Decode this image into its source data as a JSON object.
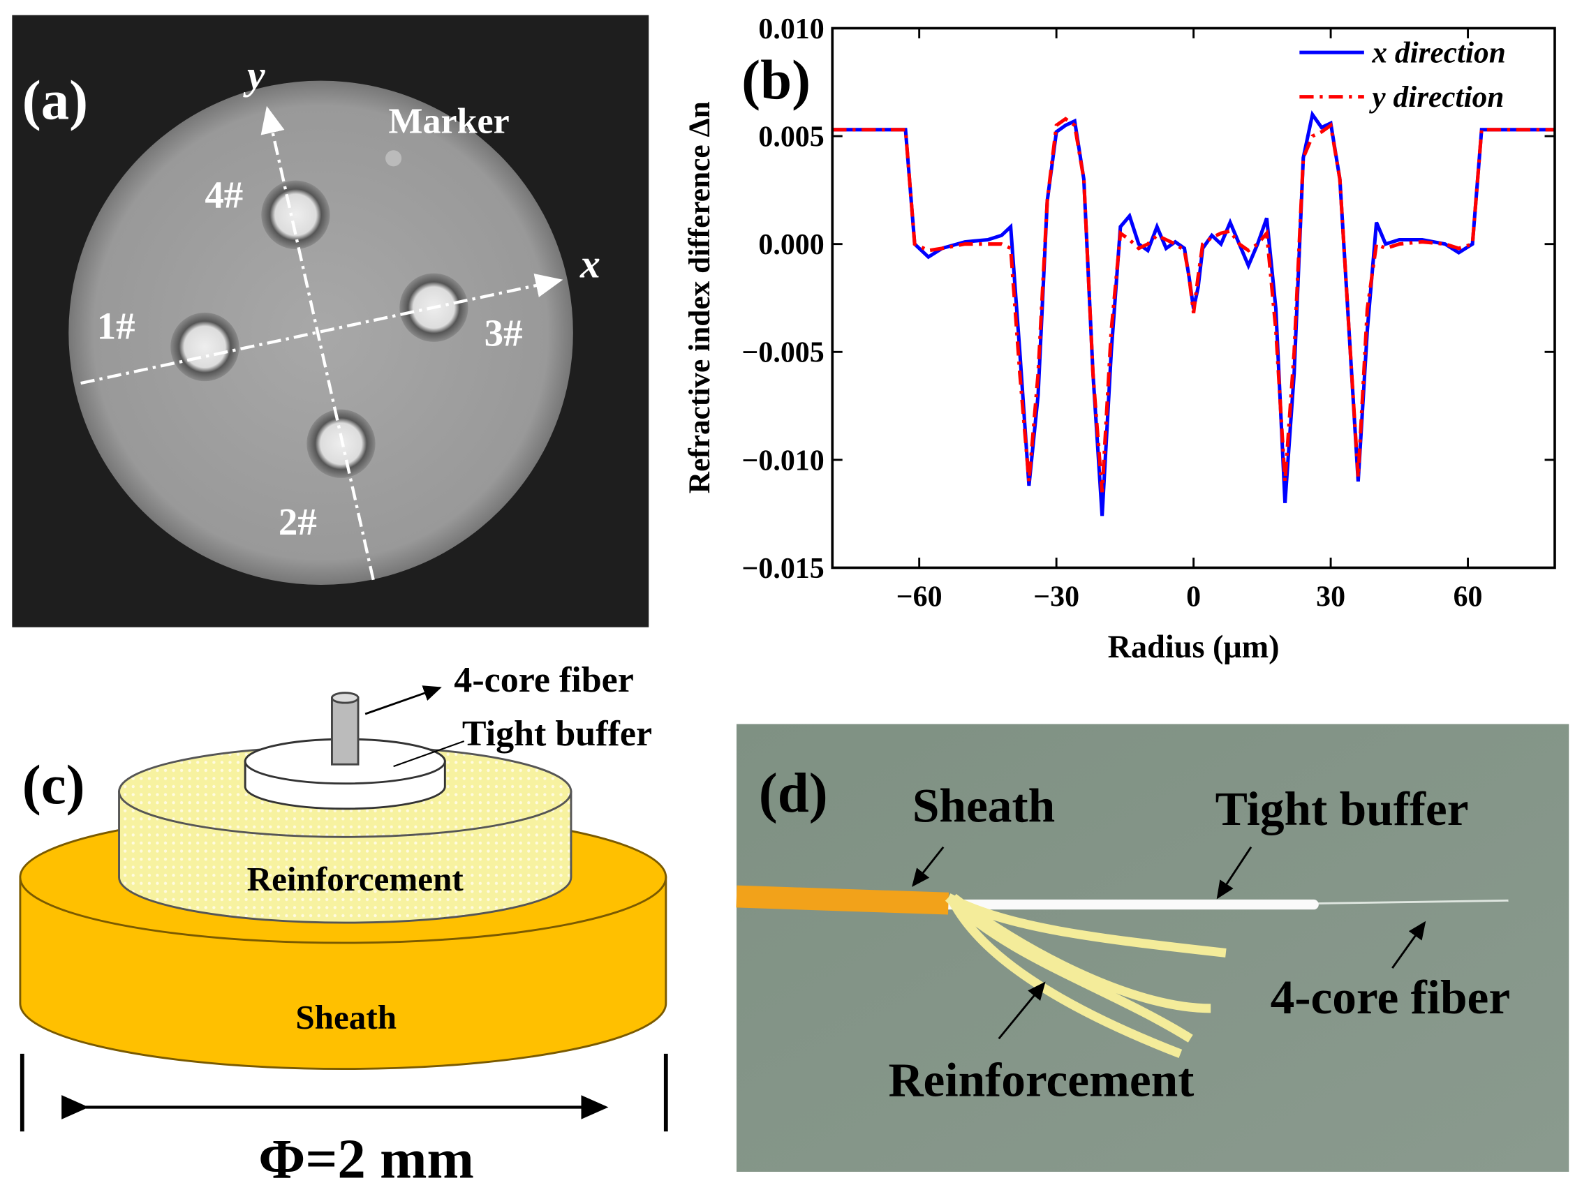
{
  "panel_a": {
    "label": "(a)",
    "axis_x": "x",
    "axis_y": "y",
    "marker": "Marker",
    "cores": [
      "1#",
      "2#",
      "3#",
      "4#"
    ]
  },
  "chart_data": {
    "type": "line",
    "label": "(b)",
    "x_label": "Radius (μm)",
    "y_label": "Refractive index difference Δn",
    "x": [
      -79,
      -63,
      -61,
      -58,
      -55,
      -50,
      -45,
      -42,
      -40,
      -38,
      -36,
      -34,
      -32,
      -30,
      -28,
      -26,
      -24,
      -22,
      -20,
      -18,
      -16,
      -14,
      -12,
      -10,
      -8,
      -6,
      -4,
      -2,
      -1,
      0,
      1,
      2,
      4,
      6,
      8,
      10,
      12,
      14,
      16,
      18,
      20,
      22,
      24,
      26,
      28,
      30,
      32,
      34,
      36,
      38,
      40,
      42,
      45,
      50,
      55,
      58,
      61,
      63,
      79
    ],
    "series": [
      {
        "name": "x direction",
        "color": "#0000ff",
        "line_style": "solid",
        "values": [
          0.0053,
          0.0053,
          0.0,
          -0.0006,
          -0.0002,
          0.0001,
          0.0002,
          0.0004,
          0.0008,
          -0.005,
          -0.0112,
          -0.007,
          0.002,
          0.0052,
          0.0055,
          0.0057,
          0.003,
          -0.006,
          -0.0126,
          -0.005,
          0.0008,
          0.0013,
          0.0,
          -0.0003,
          0.0008,
          -0.0002,
          0.0001,
          -0.0002,
          -0.0015,
          -0.003,
          -0.002,
          -0.0002,
          0.0004,
          0.0,
          0.001,
          0.0,
          -0.001,
          0.0,
          0.0012,
          -0.003,
          -0.012,
          -0.006,
          0.004,
          0.006,
          0.0054,
          0.0056,
          0.003,
          -0.004,
          -0.011,
          -0.004,
          0.001,
          0.0,
          0.0002,
          0.0002,
          0.0,
          -0.0004,
          0.0,
          0.0053,
          0.0053
        ]
      },
      {
        "name": "y direction",
        "color": "#ff0000",
        "line_style": "dashdot",
        "values": [
          0.0053,
          0.0053,
          0.0,
          -0.0003,
          -0.0002,
          0.0,
          0.0,
          0.0,
          -0.0002,
          -0.006,
          -0.011,
          -0.006,
          0.002,
          0.0055,
          0.0058,
          0.0055,
          0.003,
          -0.006,
          -0.0115,
          -0.004,
          0.0005,
          0.0002,
          -0.0002,
          0.0,
          0.0004,
          0.0002,
          0.0,
          -0.0003,
          -0.0015,
          -0.0032,
          -0.0015,
          0.0,
          0.0003,
          0.0005,
          0.0006,
          0.0,
          -0.0003,
          0.0,
          0.0005,
          -0.004,
          -0.011,
          -0.005,
          0.004,
          0.005,
          0.0052,
          0.0055,
          0.003,
          -0.004,
          -0.0108,
          -0.003,
          0.0,
          -0.0002,
          0.0,
          0.0001,
          0.0,
          -0.0002,
          0.0,
          0.0053,
          0.0053
        ]
      }
    ],
    "xlim": [
      -79,
      79
    ],
    "ylim": [
      -0.015,
      0.01
    ],
    "xticks": [
      {
        "value": -60,
        "label": "−60"
      },
      {
        "value": -30,
        "label": "−30"
      },
      0,
      30,
      60
    ],
    "yticks": [
      {
        "value": -0.015,
        "label": "−0.015"
      },
      {
        "value": -0.01,
        "label": "−0.010"
      },
      {
        "value": -0.005,
        "label": "−0.005"
      },
      {
        "value": 0,
        "label": "0.000"
      },
      {
        "value": 0.005,
        "label": "0.005"
      },
      {
        "value": 0.01,
        "label": "0.010"
      }
    ],
    "legend": "upper right",
    "grid": false
  },
  "panel_c": {
    "label": "(c)",
    "parts": [
      "4-core fiber",
      "Tight buffer",
      "Reinforcement",
      "Sheath"
    ],
    "dimension": "Φ=2 mm"
  },
  "panel_d": {
    "label": "(d)",
    "parts": [
      "Sheath",
      "Tight buffer",
      "4-core fiber",
      "Reinforcement"
    ]
  }
}
